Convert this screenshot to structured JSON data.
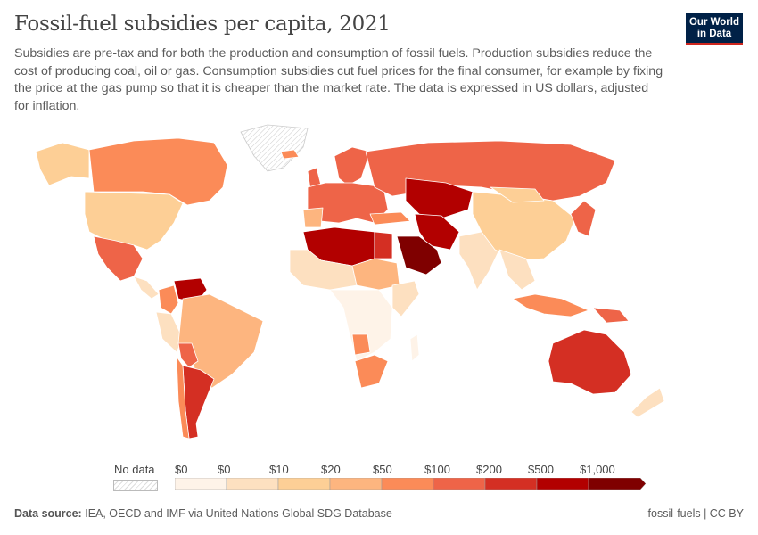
{
  "header": {
    "title": "Fossil-fuel subsidies per capita, 2021",
    "subtitle": "Subsidies are pre-tax and for both the production and consumption of fossil fuels. Production subsidies reduce the cost of producing coal, oil or gas. Consumption subsidies cut fuel prices for the final consumer, for example by fixing the price at the gas pump so that it is cheaper than the market rate. The data is expressed in US dollars, adjusted for inflation.",
    "logo_line1": "Our World",
    "logo_line2": "in Data"
  },
  "legend": {
    "no_data": "No data",
    "ticks": [
      "$0",
      "$0",
      "$10",
      "$20",
      "$50",
      "$100",
      "$200",
      "$500",
      "$1,000"
    ],
    "colors": [
      "#fef3e8",
      "#fde0c0",
      "#fdcf96",
      "#fdb57f",
      "#fb8b58",
      "#ee6448",
      "#d42f23",
      "#b20000",
      "#7f0000"
    ]
  },
  "footer": {
    "source_label": "Data source:",
    "source": "IEA, OECD and IMF via United Nations Global SDG Database",
    "license": "fossil-fuels | CC BY"
  }
}
